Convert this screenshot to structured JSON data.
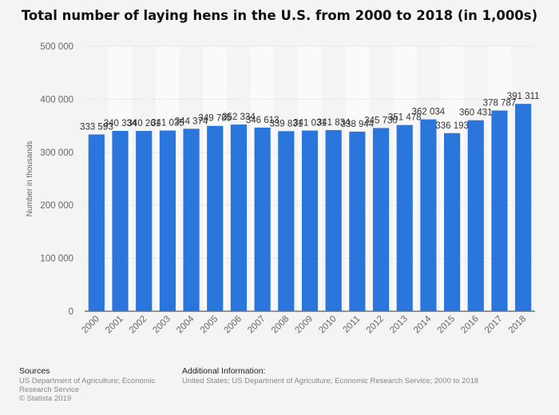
{
  "chart_data": {
    "type": "bar",
    "title": "Total number of laying hens in the U.S. from 2000 to 2018 (in 1,000s)",
    "ylabel": "Number in thousands",
    "xlabel": "",
    "categories": [
      "2000",
      "2001",
      "2002",
      "2003",
      "2004",
      "2005",
      "2006",
      "2007",
      "2008",
      "2009",
      "2010",
      "2011",
      "2012",
      "2013",
      "2014",
      "2015",
      "2016",
      "2017",
      "2018"
    ],
    "values": [
      333593,
      340334,
      340261,
      341035,
      344374,
      349785,
      352334,
      346613,
      339831,
      341031,
      341834,
      338944,
      345730,
      351478,
      362034,
      336193,
      360431,
      378787,
      391311
    ],
    "value_labels": [
      "333 593",
      "340 334",
      "340 261",
      "341 035",
      "344 374",
      "349 785",
      "352 334",
      "346 613",
      "339 831",
      "341 031",
      "341 834",
      "338 944",
      "345 730",
      "351 478",
      "362 034",
      "336 193",
      "360 431",
      "378 787",
      "391 311"
    ],
    "ylim": [
      0,
      500000
    ],
    "yticks": [
      0,
      100000,
      200000,
      300000,
      400000,
      500000
    ],
    "ytick_labels": [
      "0",
      "100 000",
      "200 000",
      "300 000",
      "400 000",
      "500 000"
    ],
    "bar_color": "#2a76dd",
    "grid": true,
    "legend": "none"
  },
  "footer": {
    "sources_heading": "Sources",
    "sources_lines": [
      "US Department of Agriculture; Economic",
      "Research Service",
      "© Statista 2019"
    ],
    "additional_heading": "Additional Information:",
    "additional_text": "United States; US Department of Agriculture; Economic Research Service; 2000 to 2018"
  }
}
